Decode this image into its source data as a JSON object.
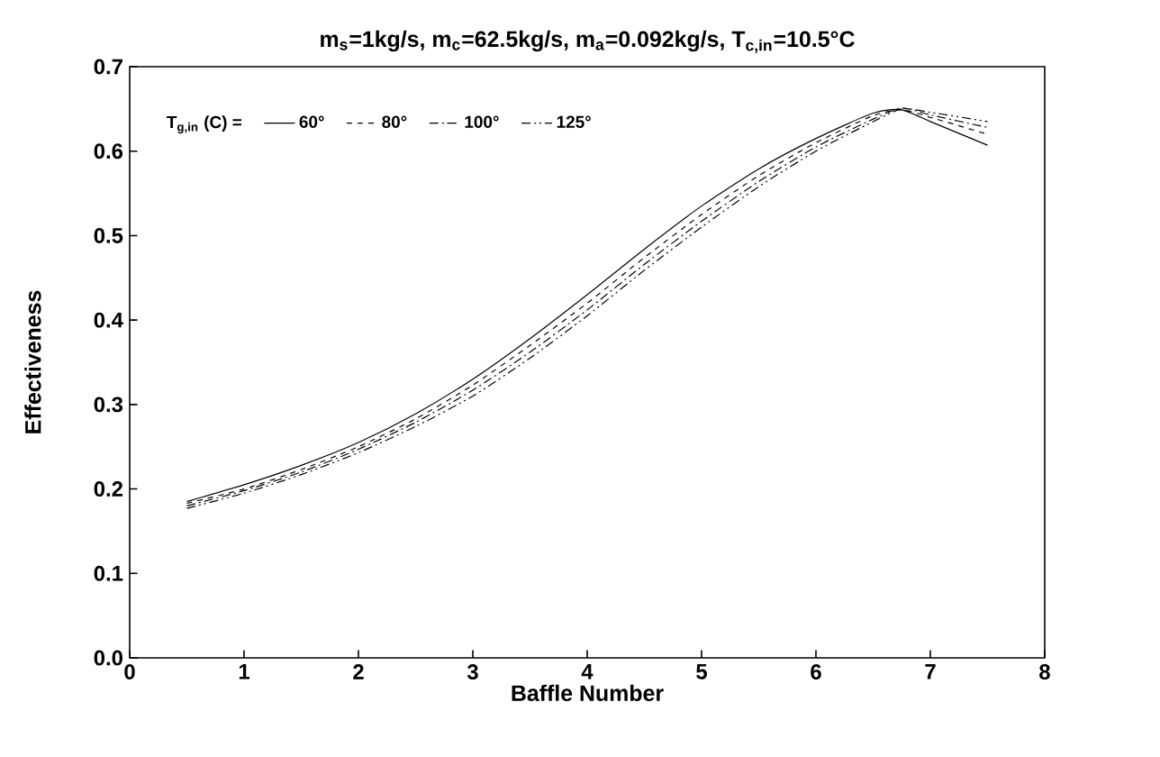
{
  "chart_data": {
    "type": "line",
    "title": "m$_{s}$=1kg/s, m$_{c}$=62.5kg/s, m$_{a}$=0.092kg/s, T$_{c,in}$=10.5°C",
    "xlabel": "Baffle Number",
    "ylabel": "Effectiveness",
    "legend_title": "T$_{g,in}$ (C) =",
    "legend": "top left",
    "xlim": [
      0,
      8
    ],
    "ylim": [
      0,
      0.7
    ],
    "xticks": [
      0,
      1,
      2,
      3,
      4,
      5,
      6,
      7,
      8
    ],
    "yticks": [
      {
        "value": 0,
        "label": "0.0"
      },
      0.1,
      0.2,
      0.3,
      0.4,
      0.5,
      0.6,
      0.7
    ],
    "grid": false,
    "x": [
      0.5,
      1,
      1.5,
      2,
      2.5,
      3,
      3.5,
      4,
      4.5,
      5,
      5.5,
      6,
      6.5,
      6.75,
      7,
      7.5
    ],
    "series": [
      {
        "name": "60°",
        "color": "#000000",
        "line_style": "solid",
        "values": [
          0.185,
          0.205,
          0.228,
          0.255,
          0.289,
          0.33,
          0.378,
          0.43,
          0.484,
          0.535,
          0.579,
          0.615,
          0.645,
          0.649,
          0.635,
          0.607
        ]
      },
      {
        "name": "80°",
        "color": "#000000",
        "line_style": "dashed",
        "values": [
          0.183,
          0.2,
          0.223,
          0.25,
          0.283,
          0.323,
          0.37,
          0.42,
          0.474,
          0.525,
          0.571,
          0.61,
          0.642,
          0.649,
          0.64,
          0.62
        ]
      },
      {
        "name": "100°",
        "color": "#000000",
        "line_style": "dashdot",
        "values": [
          0.18,
          0.198,
          0.22,
          0.247,
          0.279,
          0.317,
          0.362,
          0.412,
          0.466,
          0.517,
          0.564,
          0.605,
          0.638,
          0.651,
          0.643,
          0.628
        ]
      },
      {
        "name": "125°",
        "color": "#000000",
        "line_style": "dashdotdot",
        "values": [
          0.177,
          0.195,
          0.217,
          0.243,
          0.274,
          0.31,
          0.355,
          0.405,
          0.459,
          0.51,
          0.558,
          0.6,
          0.635,
          0.65,
          0.646,
          0.635
        ]
      }
    ]
  }
}
